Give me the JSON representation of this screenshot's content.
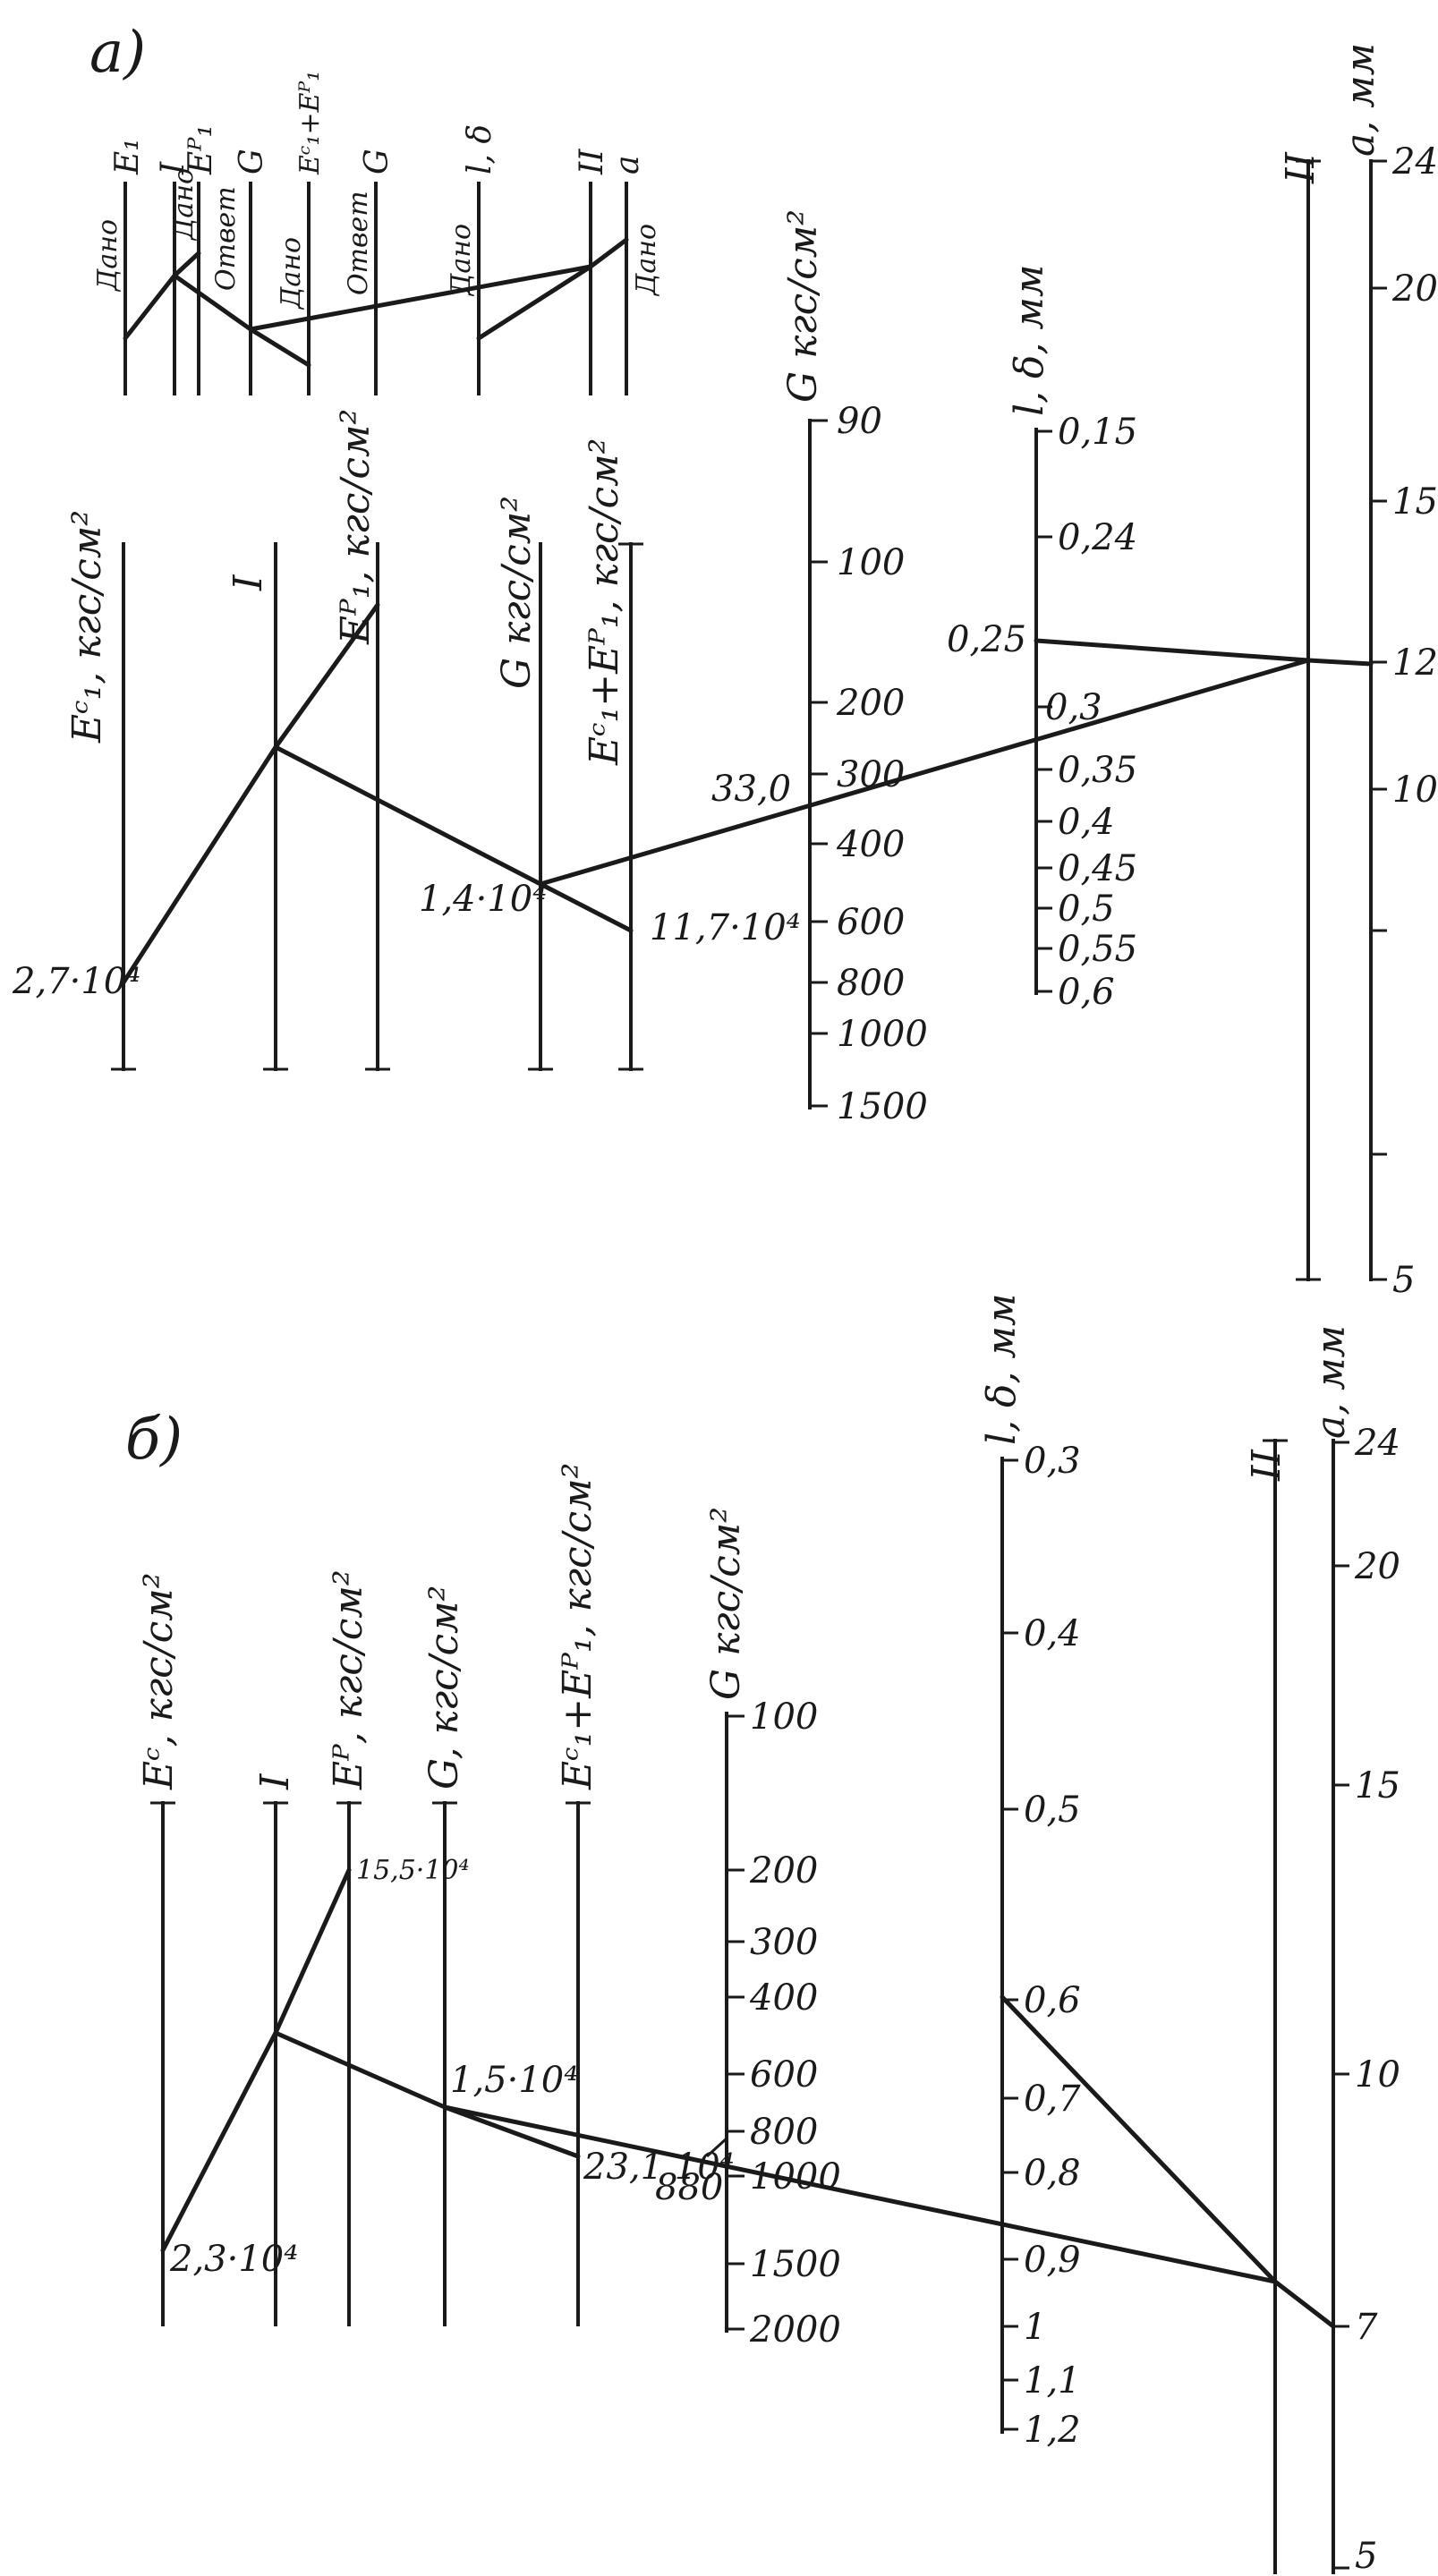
{
  "panel_a": {
    "letter": "а)",
    "key": {
      "header_labels": [
        "E₁",
        "I",
        "Eᴾ₁",
        "G",
        "Eᶜ₁+Eᴾ₁",
        "G",
        "l, δ",
        "II",
        "a"
      ],
      "captions": [
        "Дано",
        "Дано",
        "Ответ",
        "Дано",
        "Ответ",
        "Дано",
        "Дано"
      ]
    },
    "axis_labels": {
      "ec": "Eᶜ₁, кгс/см²",
      "i": "I",
      "ep": "Eᴾ₁, кгс/см²",
      "g_mid": "G кгс/см²",
      "sum": "Eᶜ₁+Eᴾ₁, кгс/см²",
      "g": "G кгс/см²",
      "l": "l, δ, мм",
      "ii": "II",
      "a": "a, мм"
    },
    "g_ticks": [
      "90",
      "100",
      "200",
      "300",
      "400",
      "600",
      "800",
      "1000",
      "1500"
    ],
    "l_ticks": [
      "0,15",
      "0,24",
      "0,3",
      "0,35",
      "0,4",
      "0,45",
      "0,5",
      "0,55",
      "0,6"
    ],
    "a_ticks": [
      "24",
      "20",
      "15",
      "12",
      "10",
      "5"
    ],
    "solution": {
      "ec": "2,7·10⁴",
      "g": "1,4·10⁴",
      "sum": "11,7·10⁴",
      "g_result": "33,0",
      "l": "0,25",
      "a": "12"
    }
  },
  "panel_b": {
    "letter": "б)",
    "axis_labels": {
      "ec": "Eᶜ, кгс/см²",
      "i": "I",
      "ep": "Eᴾ, кгс/см²",
      "g_mid": "G, кгс/см²",
      "sum": "Eᶜ₁+Eᴾ₁, кгс/см²",
      "g": "G кгс/см²",
      "l": "l, δ, мм",
      "ii": "II",
      "a": "a, мм"
    },
    "g_ticks": [
      "100",
      "200",
      "300",
      "400",
      "600",
      "800",
      "1000",
      "1500",
      "2000"
    ],
    "l_ticks": [
      "0,3",
      "0,4",
      "0,5",
      "0,6",
      "0,7",
      "0,8",
      "0,9",
      "1",
      "1,1",
      "1,2"
    ],
    "a_ticks": [
      "24",
      "20",
      "15",
      "10",
      "7",
      "5"
    ],
    "solution": {
      "ep": "15,5·10⁴",
      "ec": "2,3·10⁴",
      "g": "1,5·10⁴",
      "sum": "23,1 10⁴",
      "g_result": "880"
    }
  }
}
